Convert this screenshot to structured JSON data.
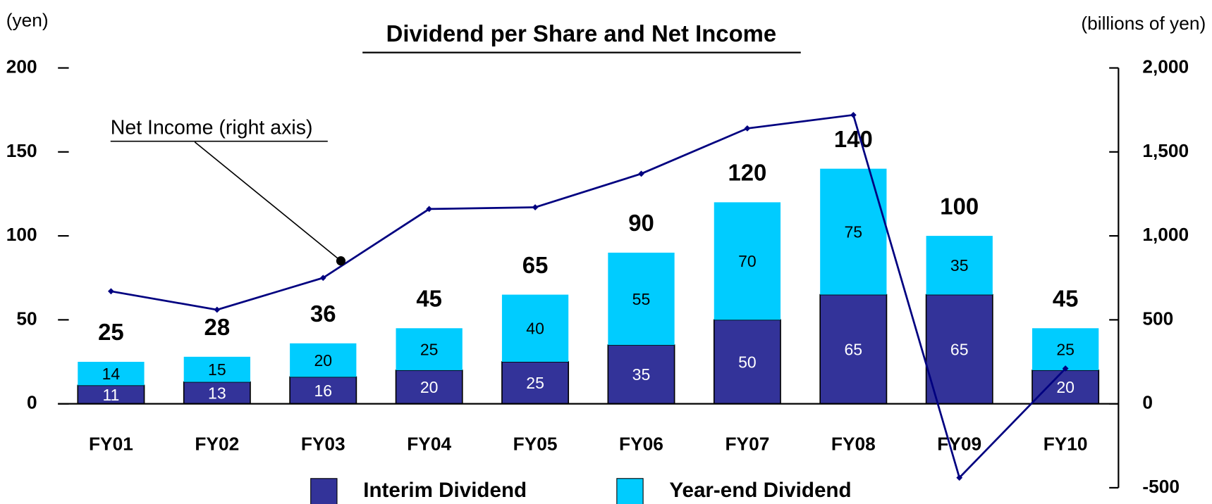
{
  "chart_data": {
    "type": "bar",
    "stacked": true,
    "title": "Dividend per Share and Net Income",
    "y_axis_label": "(yen)",
    "y2_axis_label": "(billions of yen)",
    "annotation": "Net Income (right axis)",
    "categories": [
      "FY01",
      "FY02",
      "FY03",
      "FY04",
      "FY05",
      "FY06",
      "FY07",
      "FY08",
      "FY09",
      "FY10"
    ],
    "series": [
      {
        "name": "Interim Dividend",
        "color": "#333399",
        "values": [
          11,
          13,
          16,
          20,
          25,
          35,
          50,
          65,
          65,
          20
        ]
      },
      {
        "name": "Year-end Dividend",
        "color": "#00ccff",
        "values": [
          14,
          15,
          20,
          25,
          40,
          55,
          70,
          75,
          35,
          25
        ]
      },
      {
        "type": "line",
        "axis": "y2",
        "color": "#000080",
        "values": [
          670,
          560,
          750,
          1160,
          1170,
          1370,
          1640,
          1720,
          -440,
          210
        ]
      }
    ],
    "totals": [
      25,
      28,
      36,
      45,
      65,
      90,
      120,
      140,
      100,
      45
    ],
    "ylim": [
      -50,
      200
    ],
    "yticks": [
      0,
      50,
      100,
      150,
      200
    ],
    "y2lim": [
      -500,
      2000
    ],
    "y2ticks": [
      -500,
      0,
      500,
      {
        "value": 1000,
        "label": "1,000"
      },
      {
        "value": 1500,
        "label": "1,500"
      },
      {
        "value": 2000,
        "label": "2,000"
      }
    ],
    "legend": "bottom"
  }
}
